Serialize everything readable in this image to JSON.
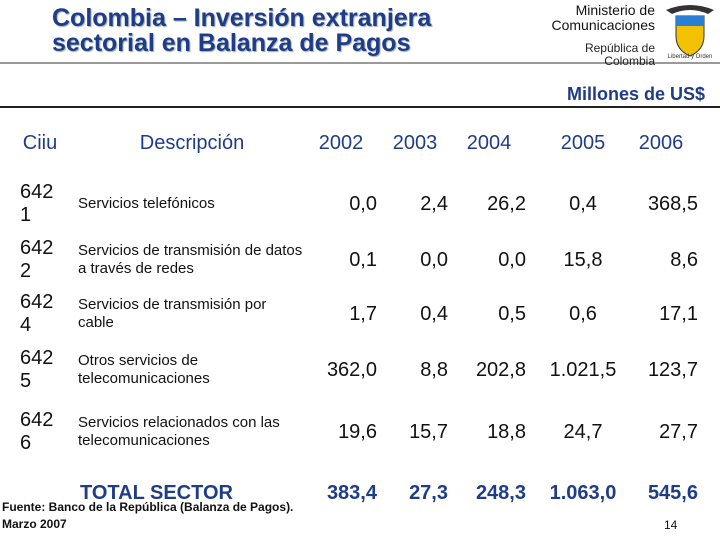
{
  "header": {
    "title": "Colombia – Inversión extranjera sectorial en Balanza de Pagos",
    "ministry": "Ministerio de Comunicaciones",
    "country": "República de Colombia"
  },
  "units": "Millones de US$",
  "table": {
    "columns": [
      "Ciiu",
      "Descripción",
      "2002",
      "2003",
      "2004",
      "2005",
      "2006"
    ],
    "rows": [
      [
        "6421",
        "Servicios telefónicos",
        "0,0",
        "2,4",
        "26,2",
        "0,4",
        "368,5"
      ],
      [
        "6422",
        "Servicios de transmisión de datos a través de redes",
        "0,1",
        "0,0",
        "0,0",
        "15,8",
        "8,6"
      ],
      [
        "6424",
        "Servicios de transmisión por cable",
        "1,7",
        "0,4",
        "0,5",
        "0,6",
        "17,1"
      ],
      [
        "6425",
        "Otros servicios de telecomunicaciones",
        "362,0",
        "8,8",
        "202,8",
        "1.021,5",
        "123,7"
      ],
      [
        "6426",
        "Servicios relacionados con las telecomunicaciones",
        "19,6",
        "15,7",
        "18,8",
        "24,7",
        "27,7"
      ]
    ],
    "total": [
      "TOTAL SECTOR",
      "383,4",
      "27,3",
      "248,3",
      "1.063,0",
      "545,6"
    ]
  },
  "footer": {
    "source": "Fuente: Banco de la República (Balanza de Pagos).",
    "date": "Marzo 2007",
    "page": "14"
  }
}
